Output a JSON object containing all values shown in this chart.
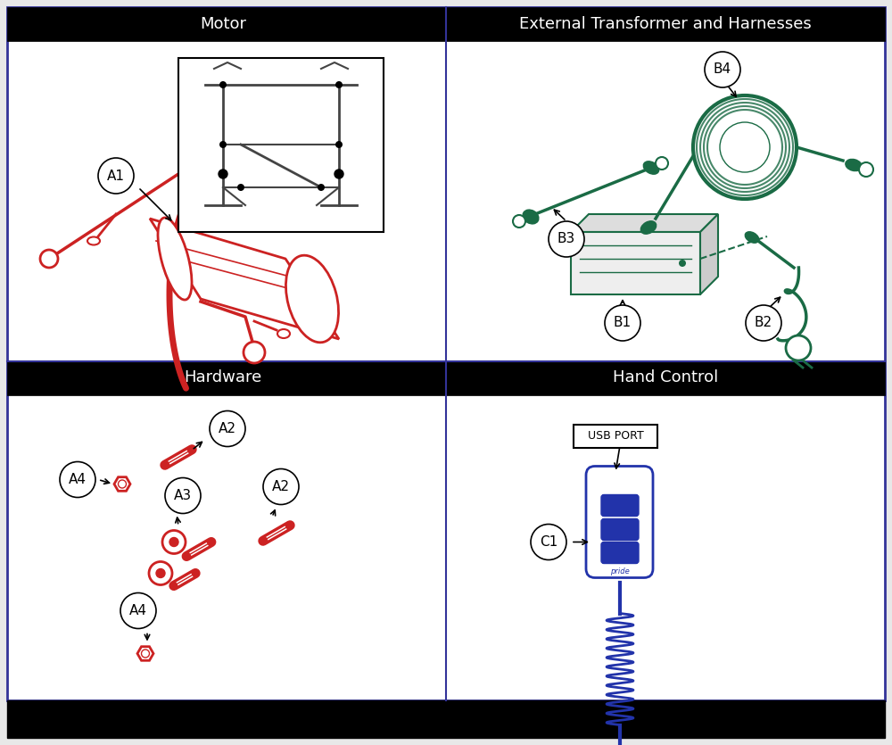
{
  "header_color": "#000000",
  "header_text_color": "#ffffff",
  "border_color": "#1a1a2e",
  "bg_color": "#ffffff",
  "footer_color": "#000000",
  "red_color": "#cc2222",
  "green_color": "#1a6b45",
  "blue_color": "#2233aa",
  "gray_color": "#555555",
  "sections": [
    {
      "name": "Motor",
      "col": 0,
      "row": 0
    },
    {
      "name": "External Transformer and Harnesses",
      "col": 1,
      "row": 0
    },
    {
      "name": "Hardware",
      "col": 0,
      "row": 1
    },
    {
      "name": "Hand Control",
      "col": 1,
      "row": 1
    }
  ]
}
